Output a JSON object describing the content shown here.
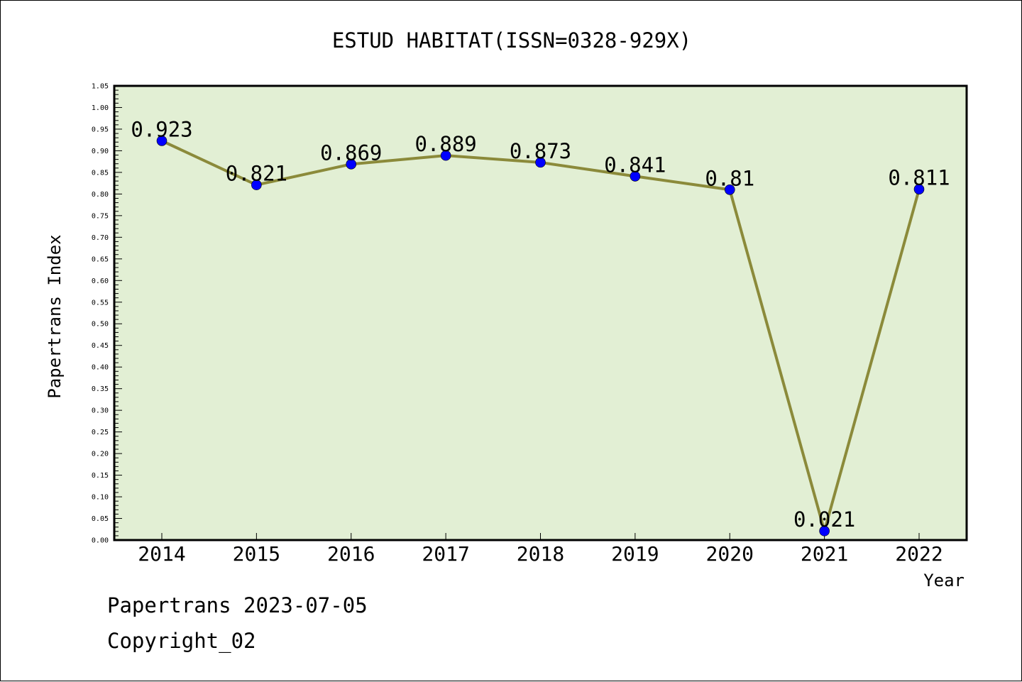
{
  "chart_data": {
    "type": "line",
    "title": "ESTUD HABITAT(ISSN=0328-929X)",
    "xlabel": "Year",
    "ylabel": "Papertrans Index",
    "categories": [
      "2014",
      "2015",
      "2016",
      "2017",
      "2018",
      "2019",
      "2020",
      "2021",
      "2022"
    ],
    "series": [
      {
        "values": [
          0.923,
          0.821,
          0.869,
          0.889,
          0.873,
          0.841,
          0.81,
          0.021,
          0.811
        ],
        "labels": [
          "0.923",
          "0.821",
          "0.869",
          "0.889",
          "0.873",
          "0.841",
          "0.81",
          "0.021",
          "0.811"
        ]
      }
    ],
    "ylim": [
      0,
      1.05
    ],
    "y_major_step": 0.05,
    "y_tick_labels": [
      "0.00",
      "0.05",
      "0.10",
      "0.15",
      "0.20",
      "0.25",
      "0.30",
      "0.35",
      "0.40",
      "0.45",
      "0.50",
      "0.55",
      "0.60",
      "0.65",
      "0.70",
      "0.75",
      "0.80",
      "0.85",
      "0.90",
      "0.95",
      "1.00",
      "1.05"
    ],
    "grid": false,
    "legend": "none",
    "colors": {
      "plot_background": "#e2efd4",
      "line": "#8b8a3a",
      "marker": "#0000ff",
      "axis": "#000000"
    }
  },
  "footer": {
    "line1": "Papertrans 2023-07-05",
    "line2": "Copyright_02"
  }
}
